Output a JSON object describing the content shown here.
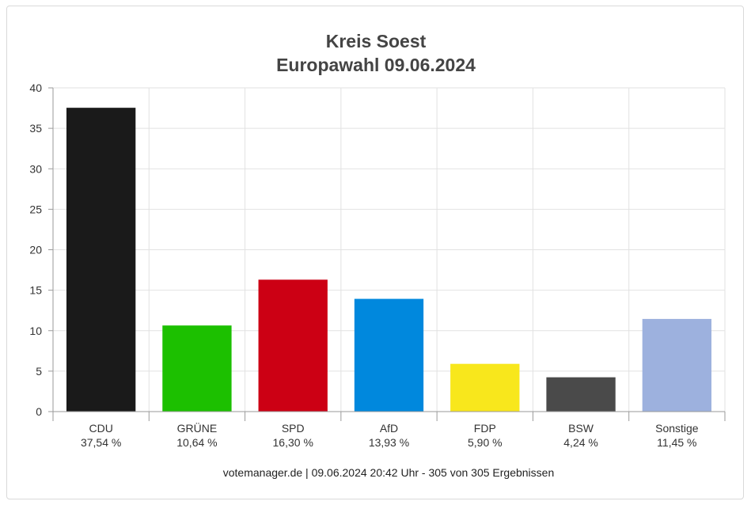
{
  "chart_data": {
    "type": "bar",
    "title": "Kreis Soest",
    "subtitle": "Europawahl 09.06.2024",
    "categories": [
      "CDU",
      "GRÜNE",
      "SPD",
      "AfD",
      "FDP",
      "BSW",
      "Sonstige"
    ],
    "values": [
      37.54,
      10.64,
      16.3,
      13.93,
      5.9,
      4.24,
      11.45
    ],
    "value_labels": [
      "37,54 %",
      "10,64 %",
      "16,30 %",
      "13,93 %",
      "5,90 %",
      "4,24 %",
      "11,45 %"
    ],
    "colors": [
      "#1a1a1a",
      "#1cc000",
      "#cc0014",
      "#0088dd",
      "#f8e71c",
      "#4a4a4a",
      "#9db1de"
    ],
    "ylim": [
      0,
      40
    ],
    "yticks": [
      0,
      5,
      10,
      15,
      20,
      25,
      30,
      35,
      40
    ],
    "grid": true,
    "xlabel": "",
    "ylabel": ""
  },
  "footer": "votemanager.de | 09.06.2024 20:42 Uhr - 305 von 305 Ergebnissen"
}
